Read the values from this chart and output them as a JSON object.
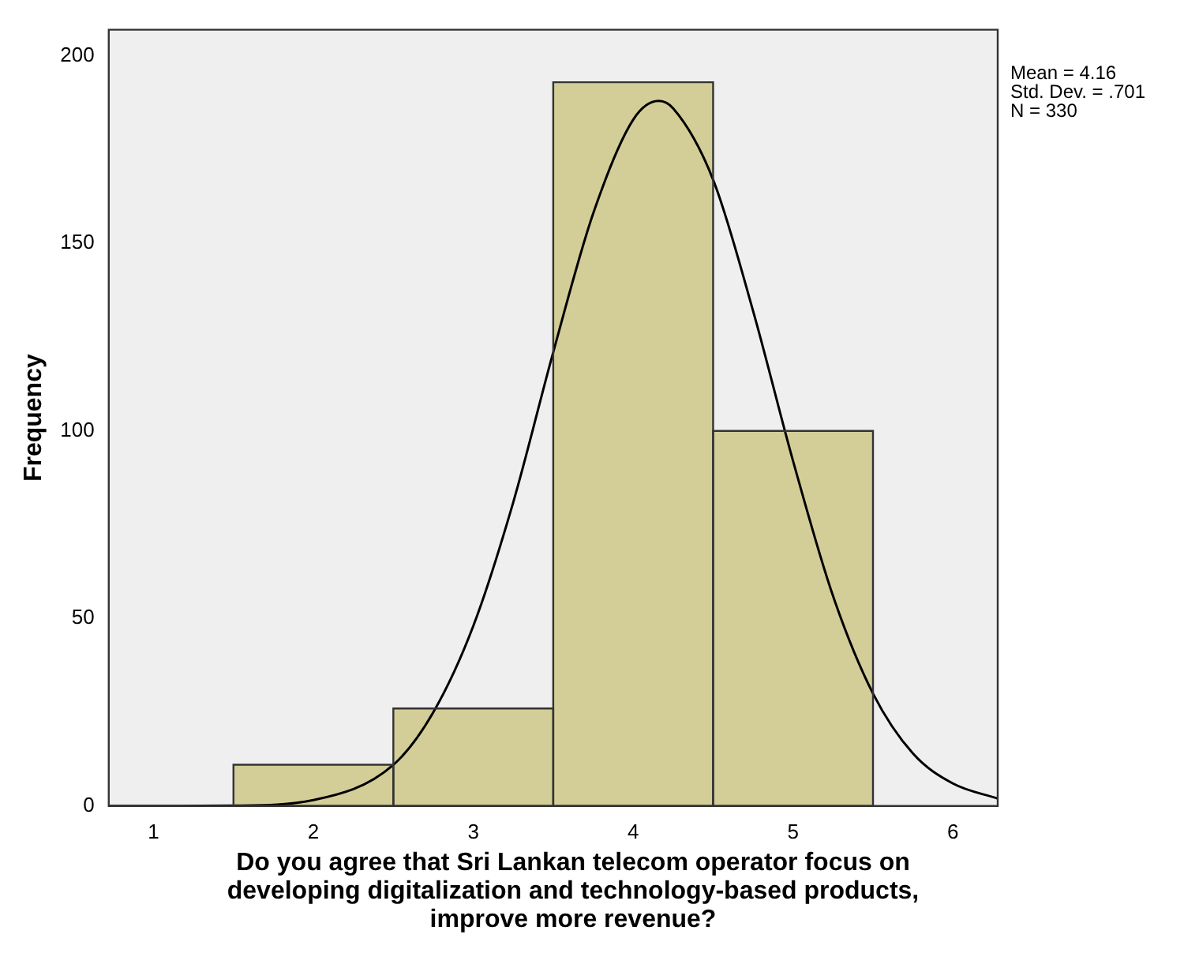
{
  "chart_data": {
    "type": "histogram",
    "bins": [
      1.5,
      2.5,
      3.5,
      4.5,
      5.5
    ],
    "values": [
      11,
      26,
      193,
      100
    ],
    "color": "#d3ce97",
    "series": [
      {
        "type": "line",
        "color": "#000000",
        "x": [
          0.72,
          1,
          1.5,
          2,
          2.5,
          2.75,
          3,
          3.25,
          3.5,
          3.75,
          4,
          4.16,
          4.25,
          4.5,
          4.75,
          5,
          5.25,
          5.5,
          5.75,
          6,
          6.28
        ],
        "values": [
          0,
          0,
          0.1,
          1.6,
          11,
          25,
          48,
          81,
          121,
          158,
          183,
          188,
          186,
          167,
          132,
          92,
          56,
          30,
          14,
          6,
          2
        ]
      }
    ],
    "xlabel": "Do you agree that Sri Lankan telecom operator focus on developing digitalization and technology-based products, improve more revenue?",
    "ylabel": "Frequency",
    "xlim": [
      0.72,
      6.28
    ],
    "xticks": [
      1,
      2,
      3,
      4,
      5,
      6
    ],
    "ylim": [
      0,
      207
    ],
    "yticks": [
      0,
      50,
      100,
      150,
      200
    ],
    "annotations": [
      "Mean = 4.16",
      "Std. Dev. = .701",
      "N = 330"
    ]
  }
}
